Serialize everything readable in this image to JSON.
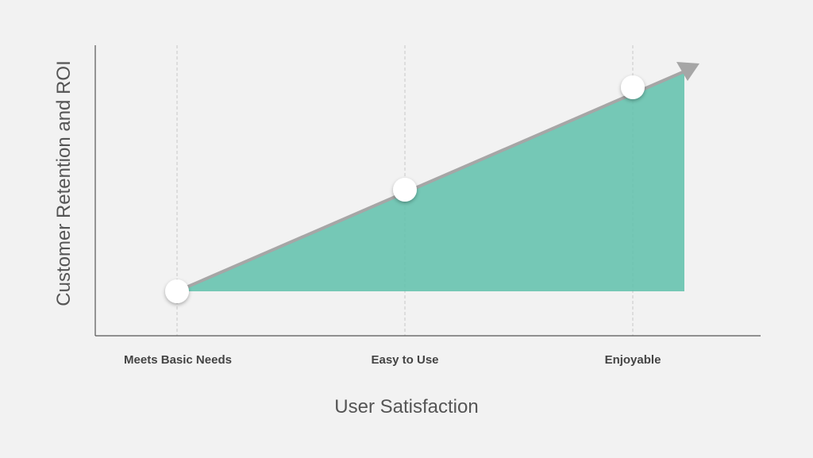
{
  "y_axis_label": "Customer Retention and ROI",
  "x_axis_label": "User Satisfaction",
  "categories": [
    "Meets Basic Needs",
    "Easy to Use",
    "Enjoyable"
  ]
}
